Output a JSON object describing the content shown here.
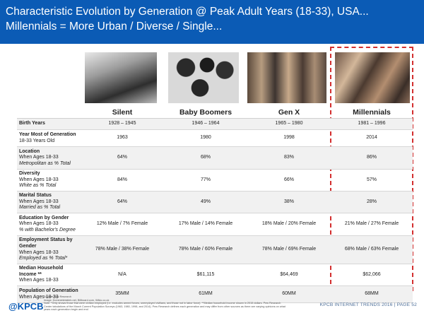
{
  "title_line1": "Characteristic Evolution by Generation @ Peak Adult Years (18-33), USA...",
  "title_line2": "Millennials = More Urban / Diverse / Single...",
  "generations": [
    "Silent",
    "Baby Boomers",
    "Gen X",
    "Millennials"
  ],
  "rows": [
    {
      "label": "Birth Years",
      "label_sub": "",
      "note": "",
      "values": [
        "1928 – 1945",
        "1946 – 1964",
        "1965 – 1980",
        "1981 – 1996"
      ]
    },
    {
      "label": "Year Most of Generation",
      "label_sub": "18-33 Years Old",
      "note": "",
      "values": [
        "1963",
        "1980",
        "1998",
        "2014"
      ]
    },
    {
      "label": "Location",
      "label_sub": "When Ages 18-33",
      "note": "Metropolitan as % Total",
      "values": [
        "64%",
        "68%",
        "83%",
        "86%"
      ]
    },
    {
      "label": "Diversity",
      "label_sub": "When Ages 18-33",
      "note": "White as % Total",
      "values": [
        "84%",
        "77%",
        "66%",
        "57%"
      ]
    },
    {
      "label": "Marital Status",
      "label_sub": "When Ages 18-33",
      "note": "Married as % Total",
      "values": [
        "64%",
        "49%",
        "38%",
        "28%"
      ]
    },
    {
      "label": "Education by Gender",
      "label_sub": "When Ages 18-33",
      "note": "% with Bachelor's Degree",
      "values": [
        "12% Male / 7% Female",
        "17% Male / 14% Female",
        "18% Male / 20% Female",
        "21% Male / 27% Female"
      ]
    },
    {
      "label": "Employment Status by Gender",
      "label_sub": "When Ages 18-33",
      "note": "Employed as % Total*",
      "values": [
        "78% Male / 38% Female",
        "78% Male / 60% Female",
        "78% Male / 69% Female",
        "68% Male / 63% Female"
      ]
    },
    {
      "label": "Median Household Income **",
      "label_sub": "When Ages 18-33",
      "note": "",
      "values": [
        "N/A",
        "$61,115",
        "$64,469",
        "$62,066"
      ]
    },
    {
      "label": "Population of Generation",
      "label_sub": "When Ages 18-33",
      "note": "",
      "values": [
        "35MM",
        "61MM",
        "60MM",
        "68MM"
      ]
    }
  ],
  "footnote": {
    "line1": "Source: Pew Research",
    "line2": "Image: Dominiekbistleb.net, Billboard.com, Wikio.co.uk",
    "line3": "Note: *Only shows those that were civilian employed (i.e. excludes armed forces, unemployed civilians, and those not in labor force). **Median household income shown in 2015 dollars. Pew Research",
    "line4": "Center tabulations of the March Current Population Surveys (1963, 1980, 1998, and 2014). Pew Research defines each generation and may differ from other sources as there are varying opinions on what",
    "line5": "years each generation begin and end"
  },
  "logo": "@KPCB",
  "brand": "KPCB INTERNET TRENDS 2016  |  PAGE 52",
  "colors": {
    "header": "#0b5bb5",
    "highlight": "#d32f2f"
  }
}
